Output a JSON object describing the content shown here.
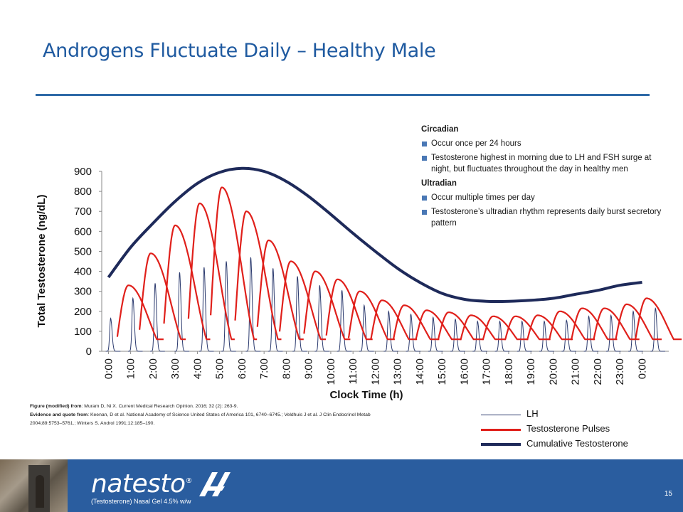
{
  "slide": {
    "title": "Androgens Fluctuate Daily – Healthy Male",
    "page_number": "15"
  },
  "bullets": {
    "circadian_header": "Circadian",
    "circadian_items": [
      "Occur once per 24 hours",
      "Testosterone highest in morning due to LH and FSH surge at night, but fluctuates throughout the day in healthy men"
    ],
    "ultradian_header": "Ultradian",
    "ultradian_items": [
      "Occur multiple times per day",
      "Testosterone’s ultradian rhythm represents daily burst secretory pattern"
    ]
  },
  "references": {
    "fig_label": "Figure (modified) from",
    "fig_text": ": Muram D, Ni X. Current Medical Research Opinion. 2016; 32 (2): 263-9.",
    "evid_label": "Evidence and quote from",
    "evid_text": ": Keenan, D et al. National Academy of Science United States of America 101, 6740–6745.; Veldhuis J et al. J Clin Endocrinol Metab 2004;89:5753–5761.; Winters S. Androl 1991;12:185–190."
  },
  "legend": {
    "lh": "LH",
    "pulses": "Testosterone Pulses",
    "cumulative": "Cumulative Testosterone"
  },
  "footer": {
    "brand": "natesto",
    "brand_mark": "®",
    "subtitle": "(Testosterone) Nasal Gel 4.5% w/w"
  },
  "colors": {
    "title": "#1f5aa0",
    "lh": "#2b3a6e",
    "pulses": "#e0201b",
    "cumulative": "#1e2a5a",
    "footer": "#2a5d9f"
  },
  "chart_data": {
    "type": "line",
    "xlabel": "Clock Time (h)",
    "ylabel": "Total Testosterone (ng/dL)",
    "ylim": [
      0,
      900
    ],
    "yticks": [
      0,
      100,
      200,
      300,
      400,
      500,
      600,
      700,
      800,
      900
    ],
    "xlim": [
      -0.3,
      25.2
    ],
    "xticks": [
      "0:00",
      "1:00",
      "2:00",
      "3:00",
      "4:00",
      "5:00",
      "6:00",
      "7:00",
      "8:00",
      "9:00",
      "10:00",
      "11:00",
      "12:00",
      "13:00",
      "14:00",
      "15:00",
      "16:00",
      "17:00",
      "18:00",
      "19:00",
      "20:00",
      "21:00",
      "22:00",
      "23:00",
      "0:00"
    ],
    "cumulative": {
      "name": "Cumulative Testosterone",
      "x": [
        0,
        1,
        2,
        3,
        4,
        5,
        6,
        7,
        8,
        9,
        10,
        11,
        12,
        13,
        14,
        15,
        16,
        17,
        18,
        19,
        20,
        21,
        22,
        23,
        24
      ],
      "y": [
        370,
        520,
        640,
        750,
        840,
        895,
        915,
        900,
        850,
        775,
        685,
        590,
        500,
        415,
        345,
        290,
        260,
        250,
        250,
        255,
        265,
        285,
        305,
        330,
        345
      ]
    },
    "pulses": {
      "name": "Testosterone Pulses",
      "peak_x": [
        0.9,
        1.9,
        3.0,
        4.1,
        5.1,
        6.2,
        7.2,
        8.2,
        9.3,
        10.3,
        11.3,
        12.3,
        13.3,
        14.3,
        15.3,
        16.3,
        17.3,
        18.3,
        19.3,
        20.3,
        21.3,
        22.3,
        23.3,
        24.2
      ],
      "peak_y": [
        330,
        490,
        630,
        740,
        820,
        700,
        555,
        450,
        400,
        360,
        300,
        255,
        230,
        205,
        195,
        180,
        175,
        175,
        180,
        200,
        215,
        215,
        235,
        265
      ]
    },
    "lh": {
      "name": "LH",
      "peak_x": [
        0.1,
        1.1,
        2.1,
        3.2,
        4.3,
        5.3,
        6.4,
        7.4,
        8.5,
        9.5,
        10.5,
        11.5,
        12.6,
        13.6,
        14.6,
        15.6,
        16.6,
        17.6,
        18.6,
        19.6,
        20.6,
        21.6,
        22.6,
        23.6,
        24.6
      ],
      "peak_y": [
        165,
        265,
        340,
        395,
        420,
        450,
        470,
        415,
        375,
        330,
        305,
        230,
        200,
        185,
        170,
        160,
        150,
        150,
        150,
        150,
        155,
        175,
        180,
        200,
        215
      ]
    }
  }
}
